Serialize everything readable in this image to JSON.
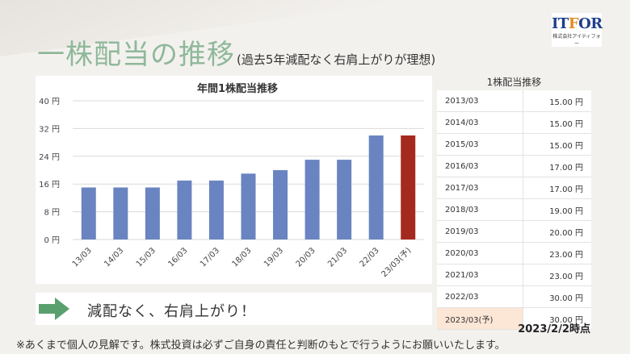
{
  "title": {
    "main": "一株配当の推移",
    "sub": "(過去5年減配なく右肩上がりが理想)"
  },
  "logo": {
    "brand_prefix": "IT",
    "brand_accent": "F",
    "brand_suffix": "OR",
    "company": "株式会社アイティフォー"
  },
  "chart_data": {
    "type": "bar",
    "title": "年間1株配当推移",
    "categories": [
      "13/03",
      "14/03",
      "15/03",
      "16/03",
      "17/03",
      "18/03",
      "19/03",
      "20/03",
      "21/03",
      "22/03",
      "23/03(予)"
    ],
    "values": [
      15,
      15,
      15,
      17,
      17,
      19,
      20,
      23,
      23,
      30,
      30
    ],
    "yticks": [
      "0 円",
      "8 円",
      "16 円",
      "24 円",
      "32 円",
      "40 円"
    ],
    "ylim": [
      0,
      40
    ],
    "colors": {
      "actual": "#6a84c1",
      "forecast": "#a52a1e"
    },
    "grid": true,
    "legend": "none"
  },
  "table": {
    "title": "1株配当推移",
    "rows": [
      {
        "year": "2013/03",
        "value": "15.00 円"
      },
      {
        "year": "2014/03",
        "value": "15.00 円"
      },
      {
        "year": "2015/03",
        "value": "15.00 円"
      },
      {
        "year": "2016/03",
        "value": "17.00 円"
      },
      {
        "year": "2017/03",
        "value": "17.00 円"
      },
      {
        "year": "2018/03",
        "value": "19.00 円"
      },
      {
        "year": "2019/03",
        "value": "20.00 円"
      },
      {
        "year": "2020/03",
        "value": "23.00 円"
      },
      {
        "year": "2021/03",
        "value": "23.00 円"
      },
      {
        "year": "2022/03",
        "value": "30.00 円"
      },
      {
        "year": "2023/03(予)",
        "value": "30.00 円"
      }
    ]
  },
  "conclusion": {
    "icon": "right-arrow-icon",
    "text": "減配なく、右肩上がり！"
  },
  "as_of": "2023/2/2時点",
  "disclaimer": "※あくまで個人の見解です。株式投資は必ずご自身の責任と判断のもとで行うようにお願いいたします。"
}
